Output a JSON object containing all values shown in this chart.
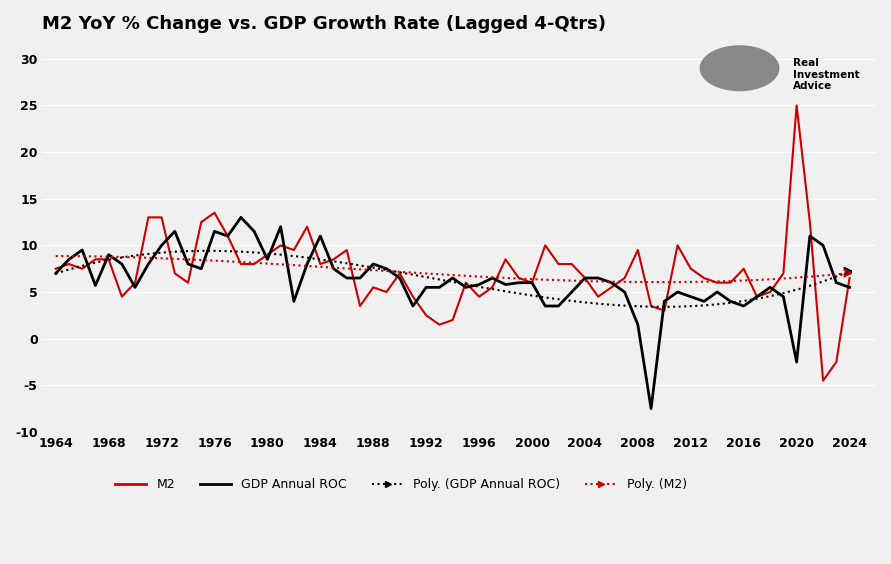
{
  "title": "M2 YoY % Change vs. GDP Growth Rate (Lagged 4-Qtrs)",
  "title_fontsize": 13,
  "background_color": "#f0f0f0",
  "plot_bg_color": "#f0f0f0",
  "ylim": [
    -10,
    32
  ],
  "yticks": [
    -10,
    -5,
    0,
    5,
    10,
    15,
    20,
    25,
    30
  ],
  "xtick_years": [
    1964,
    1968,
    1972,
    1976,
    1980,
    1984,
    1988,
    1992,
    1996,
    2000,
    2004,
    2008,
    2012,
    2016,
    2020,
    2024
  ],
  "m2_color": "#cc0000",
  "gdp_color": "#000000",
  "poly_gdp_color": "#000000",
  "poly_m2_color": "#cc0000",
  "gdp_data": {
    "years": [
      1964,
      1965,
      1966,
      1967,
      1968,
      1969,
      1970,
      1971,
      1972,
      1973,
      1974,
      1975,
      1976,
      1977,
      1978,
      1979,
      1980,
      1981,
      1982,
      1983,
      1984,
      1985,
      1986,
      1987,
      1988,
      1989,
      1990,
      1991,
      1992,
      1993,
      1994,
      1995,
      1996,
      1997,
      1998,
      1999,
      2000,
      2001,
      2002,
      2003,
      2004,
      2005,
      2006,
      2007,
      2008,
      2009,
      2010,
      2011,
      2012,
      2013,
      2014,
      2015,
      2016,
      2017,
      2018,
      2019,
      2020,
      2021,
      2022,
      2023,
      2024
    ],
    "values": [
      7.0,
      8.5,
      9.5,
      5.7,
      9.0,
      8.0,
      5.5,
      8.0,
      10.0,
      11.5,
      8.0,
      7.5,
      11.5,
      11.0,
      13.0,
      11.5,
      8.5,
      12.0,
      4.0,
      8.0,
      11.0,
      7.5,
      6.5,
      6.5,
      8.0,
      7.5,
      6.5,
      3.5,
      5.5,
      5.5,
      6.5,
      5.5,
      5.8,
      6.5,
      5.8,
      6.0,
      6.0,
      3.5,
      3.5,
      5.0,
      6.5,
      6.5,
      6.0,
      5.0,
      1.5,
      -7.5,
      4.0,
      5.0,
      4.5,
      4.0,
      5.0,
      4.0,
      3.5,
      4.5,
      5.5,
      4.5,
      -2.5,
      11.0,
      10.0,
      6.0,
      5.5
    ]
  },
  "m2_data": {
    "years": [
      1964,
      1965,
      1966,
      1967,
      1968,
      1969,
      1970,
      1971,
      1972,
      1973,
      1974,
      1975,
      1976,
      1977,
      1978,
      1979,
      1980,
      1981,
      1982,
      1983,
      1984,
      1985,
      1986,
      1987,
      1988,
      1989,
      1990,
      1991,
      1992,
      1993,
      1994,
      1995,
      1996,
      1997,
      1998,
      1999,
      2000,
      2001,
      2002,
      2003,
      2004,
      2005,
      2006,
      2007,
      2008,
      2009,
      2010,
      2011,
      2012,
      2013,
      2014,
      2015,
      2016,
      2017,
      2018,
      2019,
      2020,
      2021,
      2022,
      2023,
      2024
    ],
    "values": [
      7.5,
      8.0,
      7.5,
      8.5,
      8.5,
      4.5,
      6.0,
      13.0,
      13.0,
      7.0,
      6.0,
      12.5,
      13.5,
      11.0,
      8.0,
      8.0,
      9.0,
      10.0,
      9.5,
      12.0,
      8.0,
      8.5,
      9.5,
      3.5,
      5.5,
      5.0,
      7.0,
      4.5,
      2.5,
      1.5,
      2.0,
      6.0,
      4.5,
      5.5,
      8.5,
      6.5,
      6.0,
      10.0,
      8.0,
      8.0,
      6.5,
      4.5,
      5.5,
      6.5,
      9.5,
      3.5,
      3.0,
      10.0,
      7.5,
      6.5,
      6.0,
      6.0,
      7.5,
      4.5,
      5.0,
      7.0,
      25.0,
      12.5,
      -4.5,
      -2.5,
      6.5
    ]
  },
  "poly_degree": 3,
  "logo_text_line1": "Real",
  "logo_text_line2": "Investment",
  "logo_text_line3": "Advice"
}
